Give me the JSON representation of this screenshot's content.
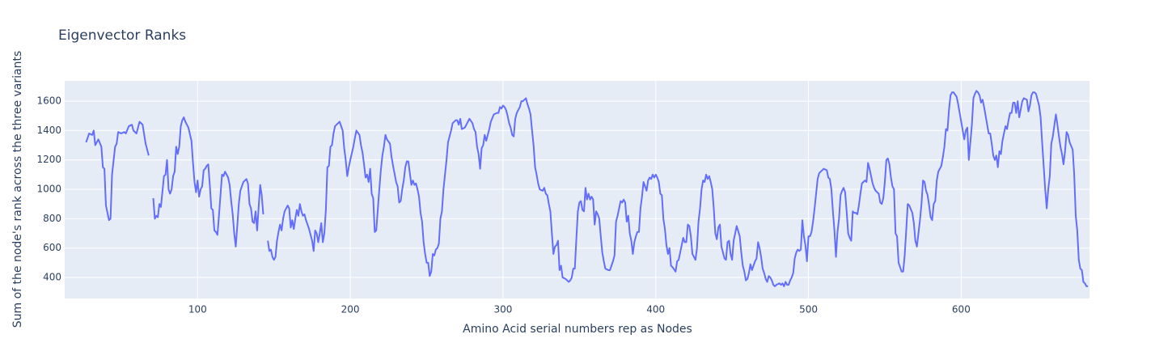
{
  "chart_data": {
    "type": "line",
    "title": "Eigenvector Ranks",
    "x_label": "Amino Acid serial numbers rep as Nodes",
    "y_label": "Sum of the node's rank across the three variants",
    "color": "#636efa",
    "grid": true,
    "xlim": [
      13,
      684
    ],
    "ylim": [
      257,
      1738
    ],
    "xticks": [
      100,
      200,
      300,
      400,
      500,
      600
    ],
    "yticks": [
      400,
      600,
      800,
      1000,
      1200,
      1400,
      1600
    ],
    "x": [
      27,
      29,
      31,
      32,
      33,
      35,
      37,
      38,
      39,
      40,
      42,
      43,
      44,
      46,
      47,
      48,
      50,
      52,
      53,
      55,
      57,
      58,
      60,
      62,
      64,
      66,
      68,
      70,
      71,
      72,
      73,
      74,
      75,
      76,
      78,
      79,
      80,
      81,
      82,
      83,
      84,
      85,
      86,
      87,
      88,
      89,
      90,
      91,
      92,
      94,
      96,
      97,
      98,
      99,
      100,
      101,
      102,
      103,
      104,
      105,
      106,
      107,
      108,
      109,
      110,
      111,
      112,
      113,
      114,
      115,
      116,
      117,
      118,
      120,
      121,
      122,
      123,
      124,
      125,
      126,
      127,
      128,
      130,
      132,
      133,
      134,
      135,
      136,
      137,
      138,
      139,
      140,
      141,
      142,
      143,
      144,
      146,
      147,
      148,
      149,
      150,
      151,
      152,
      153,
      154,
      155,
      156,
      157,
      159,
      160,
      161,
      162,
      163,
      164,
      165,
      166,
      167,
      168,
      169,
      170,
      171,
      172,
      173,
      174,
      175,
      176,
      177,
      178,
      179,
      180,
      181,
      182,
      183,
      184,
      185,
      186,
      187,
      188,
      189,
      190,
      192,
      193,
      195,
      196,
      197,
      198,
      199,
      200,
      202,
      203,
      204,
      206,
      207,
      208,
      209,
      210,
      211,
      212,
      213,
      214,
      215,
      216,
      217,
      219,
      220,
      221,
      222,
      223,
      224,
      226,
      227,
      228,
      230,
      231,
      232,
      233,
      234,
      235,
      236,
      237,
      238,
      239,
      240,
      241,
      242,
      243,
      244,
      245,
      246,
      247,
      248,
      249,
      250,
      251,
      252,
      253,
      254,
      255,
      256,
      257,
      258,
      259,
      260,
      261,
      262,
      263,
      264,
      266,
      267,
      269,
      270,
      271,
      272,
      273,
      275,
      277,
      278,
      280,
      281,
      282,
      283,
      284,
      285,
      286,
      287,
      288,
      289,
      291,
      292,
      294,
      296,
      297,
      298,
      299,
      300,
      301,
      302,
      303,
      304,
      305,
      306,
      307,
      308,
      309,
      311,
      312,
      313,
      315,
      316,
      317,
      318,
      319,
      320,
      321,
      322,
      323,
      324,
      326,
      327,
      328,
      329,
      330,
      331,
      332,
      333,
      334,
      335,
      336,
      337,
      338,
      339,
      341,
      343,
      344,
      345,
      346,
      347,
      348,
      349,
      350,
      351,
      352,
      353,
      354,
      355,
      356,
      357,
      358,
      359,
      360,
      361,
      362,
      363,
      364,
      365,
      366,
      367,
      369,
      370,
      371,
      372,
      373,
      374,
      375,
      376,
      377,
      378,
      379,
      380,
      381,
      382,
      383,
      384,
      385,
      386,
      387,
      388,
      389,
      390,
      391,
      392,
      394,
      395,
      396,
      397,
      398,
      399,
      400,
      401,
      402,
      403,
      404,
      405,
      406,
      407,
      408,
      409,
      410,
      411,
      413,
      414,
      415,
      416,
      417,
      418,
      419,
      420,
      421,
      422,
      423,
      424,
      425,
      426,
      427,
      428,
      429,
      430,
      431,
      432,
      433,
      434,
      435,
      436,
      437,
      438,
      439,
      440,
      441,
      442,
      443,
      444,
      445,
      446,
      447,
      448,
      449,
      450,
      451,
      452,
      453,
      455,
      456,
      457,
      458,
      459,
      460,
      461,
      462,
      463,
      464,
      465,
      466,
      467,
      468,
      469,
      470,
      471,
      472,
      473,
      474,
      475,
      476,
      477,
      478,
      479,
      481,
      482,
      483,
      484,
      485,
      486,
      487,
      488,
      489,
      490,
      491,
      492,
      493,
      494,
      495,
      496,
      497,
      498,
      499,
      500,
      501,
      502,
      503,
      504,
      505,
      506,
      507,
      509,
      510,
      512,
      513,
      514,
      515,
      516,
      517,
      518,
      519,
      520,
      521,
      522,
      523,
      524,
      525,
      526,
      527,
      528,
      529,
      530,
      531,
      532,
      533,
      534,
      535,
      537,
      538,
      539,
      540,
      541,
      542,
      543,
      544,
      545,
      546,
      547,
      548,
      549,
      550,
      551,
      552,
      553,
      554,
      555,
      556,
      557,
      558,
      559,
      560,
      561,
      562,
      563,
      564,
      565,
      566,
      568,
      569,
      570,
      571,
      572,
      573,
      574,
      575,
      576,
      577,
      578,
      579,
      580,
      581,
      582,
      583,
      584,
      585,
      586,
      587,
      588,
      589,
      590,
      591,
      592,
      593,
      594,
      595,
      597,
      598,
      599,
      600,
      602,
      603,
      604,
      605,
      607,
      608,
      609,
      610,
      611,
      612,
      613,
      614,
      615,
      616,
      618,
      619,
      620,
      621,
      622,
      623,
      624,
      625,
      626,
      627,
      629,
      630,
      631,
      632,
      633,
      634,
      635,
      636,
      637,
      638,
      640,
      641,
      643,
      644,
      645,
      646,
      647,
      648,
      649,
      651,
      652,
      653,
      654,
      655,
      656,
      657,
      658,
      659,
      660,
      662,
      663,
      664,
      665,
      666,
      667,
      668,
      669,
      670,
      671,
      673,
      674,
      675,
      676,
      677,
      678,
      679,
      680,
      681,
      682,
      683
    ],
    "values": [
      1320,
      1380,
      1370,
      1400,
      1300,
      1340,
      1290,
      1150,
      1140,
      890,
      790,
      800,
      1100,
      1290,
      1310,
      1390,
      1380,
      1390,
      1380,
      1430,
      1440,
      1400,
      1380,
      1460,
      1440,
      1310,
      1230,
      null,
      940,
      800,
      820,
      810,
      900,
      880,
      1090,
      1100,
      1200,
      1000,
      970,
      1000,
      1090,
      1120,
      1290,
      1240,
      1290,
      1430,
      1470,
      1490,
      1460,
      1420,
      1330,
      1180,
      1050,
      980,
      1060,
      950,
      1000,
      1020,
      1130,
      1140,
      1160,
      1170,
      1030,
      870,
      860,
      720,
      710,
      690,
      820,
      960,
      1100,
      1090,
      1120,
      1080,
      1030,
      920,
      830,
      700,
      610,
      750,
      900,
      990,
      1050,
      1070,
      1040,
      900,
      870,
      780,
      770,
      850,
      720,
      880,
      1030,
      960,
      830,
      null,
      650,
      580,
      590,
      540,
      520,
      540,
      650,
      710,
      760,
      720,
      800,
      850,
      890,
      870,
      740,
      790,
      730,
      800,
      860,
      820,
      900,
      850,
      820,
      830,
      790,
      760,
      730,
      690,
      650,
      580,
      720,
      700,
      640,
      700,
      770,
      640,
      700,
      860,
      1150,
      1160,
      1290,
      1300,
      1380,
      1430,
      1450,
      1460,
      1400,
      1280,
      1200,
      1090,
      1150,
      1200,
      1290,
      1350,
      1400,
      1370,
      1300,
      1250,
      1170,
      1080,
      1100,
      1050,
      1140,
      970,
      940,
      710,
      720,
      1000,
      1130,
      1230,
      1290,
      1370,
      1340,
      1310,
      1220,
      1160,
      1050,
      1020,
      910,
      920,
      1000,
      1060,
      1150,
      1190,
      1190,
      1110,
      1030,
      1060,
      1030,
      1040,
      1000,
      950,
      840,
      780,
      640,
      560,
      500,
      500,
      410,
      440,
      560,
      550,
      590,
      600,
      630,
      800,
      850,
      1000,
      1100,
      1200,
      1320,
      1400,
      1450,
      1470,
      1470,
      1440,
      1480,
      1410,
      1420,
      1460,
      1480,
      1450,
      1410,
      1390,
      1290,
      1240,
      1140,
      1280,
      1300,
      1370,
      1330,
      1410,
      1460,
      1510,
      1520,
      1520,
      1560,
      1550,
      1570,
      1560,
      1540,
      1500,
      1450,
      1420,
      1370,
      1360,
      1480,
      1520,
      1560,
      1600,
      1600,
      1620,
      1580,
      1550,
      1510,
      1400,
      1300,
      1150,
      1100,
      1040,
      1000,
      990,
      1010,
      970,
      960,
      900,
      850,
      700,
      560,
      610,
      620,
      650,
      450,
      480,
      400,
      390,
      370,
      380,
      400,
      460,
      460,
      660,
      850,
      910,
      920,
      860,
      850,
      1010,
      930,
      970,
      930,
      950,
      930,
      760,
      850,
      830,
      800,
      680,
      570,
      510,
      460,
      450,
      450,
      480,
      510,
      550,
      780,
      820,
      870,
      920,
      910,
      930,
      910,
      780,
      820,
      700,
      650,
      560,
      640,
      680,
      710,
      710,
      870,
      950,
      1050,
      990,
      1060,
      1080,
      1070,
      1100,
      1080,
      1100,
      1080,
      1050,
      970,
      960,
      800,
      730,
      620,
      560,
      600,
      480,
      470,
      440,
      510,
      520,
      570,
      620,
      670,
      640,
      640,
      760,
      750,
      680,
      560,
      540,
      520,
      600,
      780,
      870,
      1000,
      1060,
      1050,
      1100,
      1070,
      1090,
      1050,
      1000,
      870,
      700,
      660,
      740,
      760,
      610,
      570,
      530,
      520,
      640,
      650,
      560,
      520,
      650,
      700,
      750,
      680,
      570,
      480,
      440,
      380,
      390,
      430,
      490,
      450,
      480,
      510,
      530,
      640,
      600,
      540,
      460,
      430,
      390,
      370,
      410,
      400,
      380,
      350,
      340,
      350,
      360,
      350,
      360,
      340,
      370,
      350,
      350,
      380,
      400,
      430,
      530,
      570,
      590,
      580,
      590,
      790,
      680,
      620,
      510,
      680,
      680,
      710,
      780,
      870,
      970,
      1070,
      1110,
      1130,
      1140,
      1130,
      1080,
      1070,
      1000,
      850,
      720,
      540,
      710,
      800,
      960,
      990,
      1010,
      980,
      850,
      700,
      670,
      650,
      850,
      840,
      840,
      830,
      890,
      970,
      1040,
      1060,
      1050,
      1180,
      1140,
      1090,
      1040,
      1010,
      990,
      980,
      970,
      910,
      900,
      940,
      1050,
      1200,
      1210,
      1170,
      1080,
      1020,
      1000,
      700,
      680,
      500,
      470,
      440,
      440,
      550,
      720,
      900,
      890,
      840,
      770,
      650,
      610,
      700,
      790,
      900,
      1060,
      1050,
      990,
      960,
      890,
      810,
      790,
      900,
      920,
      1060,
      1120,
      1140,
      1160,
      1220,
      1290,
      1410,
      1400,
      1540,
      1640,
      1660,
      1660,
      1630,
      1580,
      1520,
      1460,
      1340,
      1400,
      1420,
      1200,
      1440,
      1620,
      1650,
      1670,
      1660,
      1640,
      1590,
      1610,
      1560,
      1500,
      1380,
      1380,
      1310,
      1230,
      1200,
      1230,
      1150,
      1260,
      1240,
      1330,
      1430,
      1410,
      1470,
      1520,
      1520,
      1590,
      1590,
      1520,
      1600,
      1490,
      1600,
      1620,
      1610,
      1530,
      1570,
      1640,
      1660,
      1660,
      1650,
      1570,
      1490,
      1320,
      1160,
      1000,
      870,
      1000,
      1090,
      1310,
      1360,
      1510,
      1440,
      1360,
      1290,
      1240,
      1170,
      1260,
      1390,
      1370,
      1320,
      1270,
      1100,
      820,
      720,
      520,
      460,
      450,
      370,
      360,
      340,
      340
    ]
  }
}
